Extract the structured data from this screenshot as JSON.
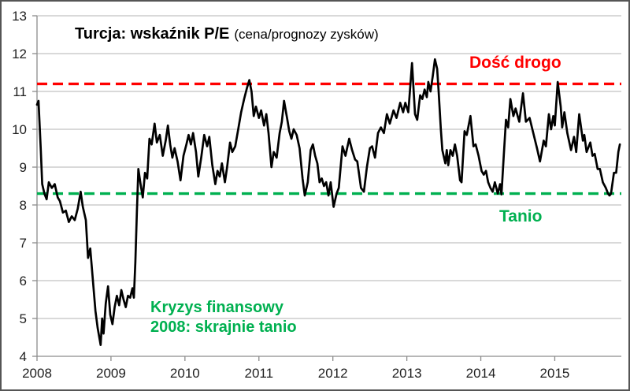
{
  "title": {
    "main": "Turcja: wskaźnik P/E",
    "sub": "(cena/prognozy zysków)"
  },
  "annotations": {
    "expensive": {
      "text": "Dość drogo",
      "color": "#ff0000"
    },
    "cheap": {
      "text": "Tanio",
      "color": "#00b050"
    },
    "crisis_line1": "Kryzys finansowy",
    "crisis_line2": "2008: skrajnie tanio",
    "crisis_color": "#00b050"
  },
  "chart_data": {
    "type": "line",
    "title": "Turcja: wskaźnik P/E (cena/prognozy zysków)",
    "xlabel": "",
    "ylabel": "",
    "xlim": [
      2008,
      2015.9
    ],
    "ylim": [
      4,
      13
    ],
    "x_ticks": [
      2008,
      2009,
      2010,
      2011,
      2012,
      2013,
      2014,
      2015
    ],
    "y_ticks": [
      4,
      5,
      6,
      7,
      8,
      9,
      10,
      11,
      12,
      13
    ],
    "grid": "horizontal",
    "legend": "none",
    "reference_lines": [
      {
        "label": "Dość drogo",
        "value": 11.2,
        "color": "#ff0000",
        "style": "dashed"
      },
      {
        "label": "Tanio",
        "value": 8.3,
        "color": "#00b050",
        "style": "dashed"
      }
    ],
    "series": [
      {
        "name": "Turcja wskaźnik P/E (cena/prognozy zysków)",
        "color": "#000000",
        "points": [
          [
            2008.0,
            10.65
          ],
          [
            2008.02,
            10.75
          ],
          [
            2008.05,
            9.5
          ],
          [
            2008.07,
            8.55
          ],
          [
            2008.1,
            8.3
          ],
          [
            2008.13,
            8.15
          ],
          [
            2008.16,
            8.6
          ],
          [
            2008.2,
            8.45
          ],
          [
            2008.24,
            8.55
          ],
          [
            2008.28,
            8.2
          ],
          [
            2008.31,
            8.1
          ],
          [
            2008.35,
            7.8
          ],
          [
            2008.39,
            7.85
          ],
          [
            2008.43,
            7.55
          ],
          [
            2008.47,
            7.7
          ],
          [
            2008.51,
            7.6
          ],
          [
            2008.55,
            7.9
          ],
          [
            2008.59,
            8.35
          ],
          [
            2008.62,
            7.95
          ],
          [
            2008.66,
            7.6
          ],
          [
            2008.69,
            6.6
          ],
          [
            2008.72,
            6.85
          ],
          [
            2008.76,
            5.9
          ],
          [
            2008.79,
            5.2
          ],
          [
            2008.82,
            4.75
          ],
          [
            2008.86,
            4.3
          ],
          [
            2008.88,
            5.0
          ],
          [
            2008.9,
            4.6
          ],
          [
            2008.93,
            5.4
          ],
          [
            2008.96,
            5.85
          ],
          [
            2008.99,
            5.1
          ],
          [
            2009.02,
            4.85
          ],
          [
            2009.05,
            5.3
          ],
          [
            2009.08,
            5.6
          ],
          [
            2009.11,
            5.35
          ],
          [
            2009.14,
            5.75
          ],
          [
            2009.17,
            5.5
          ],
          [
            2009.2,
            5.3
          ],
          [
            2009.23,
            5.6
          ],
          [
            2009.26,
            5.55
          ],
          [
            2009.29,
            5.8
          ],
          [
            2009.31,
            5.55
          ],
          [
            2009.33,
            6.5
          ],
          [
            2009.35,
            7.8
          ],
          [
            2009.37,
            8.95
          ],
          [
            2009.4,
            8.55
          ],
          [
            2009.43,
            8.2
          ],
          [
            2009.46,
            8.85
          ],
          [
            2009.49,
            8.7
          ],
          [
            2009.52,
            9.75
          ],
          [
            2009.55,
            9.6
          ],
          [
            2009.59,
            10.15
          ],
          [
            2009.62,
            9.65
          ],
          [
            2009.66,
            9.85
          ],
          [
            2009.7,
            9.3
          ],
          [
            2009.74,
            9.7
          ],
          [
            2009.77,
            10.1
          ],
          [
            2009.8,
            9.6
          ],
          [
            2009.83,
            9.25
          ],
          [
            2009.86,
            9.5
          ],
          [
            2009.9,
            9.15
          ],
          [
            2009.94,
            8.65
          ],
          [
            2009.98,
            9.3
          ],
          [
            2010.02,
            9.6
          ],
          [
            2010.05,
            9.85
          ],
          [
            2010.08,
            9.6
          ],
          [
            2010.11,
            9.9
          ],
          [
            2010.15,
            9.4
          ],
          [
            2010.18,
            8.75
          ],
          [
            2010.22,
            9.25
          ],
          [
            2010.26,
            9.85
          ],
          [
            2010.3,
            9.55
          ],
          [
            2010.33,
            9.8
          ],
          [
            2010.37,
            9.05
          ],
          [
            2010.41,
            8.55
          ],
          [
            2010.44,
            8.9
          ],
          [
            2010.47,
            8.75
          ],
          [
            2010.5,
            9.1
          ],
          [
            2010.54,
            8.6
          ],
          [
            2010.57,
            9.0
          ],
          [
            2010.61,
            9.65
          ],
          [
            2010.64,
            9.4
          ],
          [
            2010.68,
            9.55
          ],
          [
            2010.72,
            10.0
          ],
          [
            2010.76,
            10.45
          ],
          [
            2010.8,
            10.8
          ],
          [
            2010.84,
            11.1
          ],
          [
            2010.87,
            11.3
          ],
          [
            2010.9,
            11.0
          ],
          [
            2010.93,
            10.35
          ],
          [
            2010.96,
            10.6
          ],
          [
            2011.0,
            10.3
          ],
          [
            2011.03,
            10.5
          ],
          [
            2011.07,
            10.1
          ],
          [
            2011.1,
            10.4
          ],
          [
            2011.13,
            9.9
          ],
          [
            2011.17,
            9.0
          ],
          [
            2011.2,
            9.4
          ],
          [
            2011.24,
            9.25
          ],
          [
            2011.28,
            9.9
          ],
          [
            2011.31,
            10.2
          ],
          [
            2011.34,
            10.75
          ],
          [
            2011.38,
            10.3
          ],
          [
            2011.41,
            9.95
          ],
          [
            2011.44,
            9.75
          ],
          [
            2011.47,
            10.0
          ],
          [
            2011.51,
            9.85
          ],
          [
            2011.55,
            9.5
          ],
          [
            2011.59,
            8.7
          ],
          [
            2011.62,
            8.25
          ],
          [
            2011.66,
            8.6
          ],
          [
            2011.7,
            9.45
          ],
          [
            2011.73,
            9.6
          ],
          [
            2011.76,
            9.3
          ],
          [
            2011.79,
            9.1
          ],
          [
            2011.82,
            8.6
          ],
          [
            2011.85,
            8.7
          ],
          [
            2011.88,
            8.5
          ],
          [
            2011.91,
            8.6
          ],
          [
            2011.94,
            8.25
          ],
          [
            2011.97,
            8.6
          ],
          [
            2012.01,
            7.95
          ],
          [
            2012.05,
            8.3
          ],
          [
            2012.08,
            8.45
          ],
          [
            2012.13,
            9.55
          ],
          [
            2012.17,
            9.3
          ],
          [
            2012.22,
            9.75
          ],
          [
            2012.26,
            9.45
          ],
          [
            2012.3,
            9.2
          ],
          [
            2012.33,
            9.15
          ],
          [
            2012.38,
            8.45
          ],
          [
            2012.42,
            8.35
          ],
          [
            2012.46,
            9.0
          ],
          [
            2012.5,
            9.5
          ],
          [
            2012.53,
            9.55
          ],
          [
            2012.57,
            9.25
          ],
          [
            2012.61,
            9.9
          ],
          [
            2012.65,
            10.05
          ],
          [
            2012.69,
            9.9
          ],
          [
            2012.73,
            10.4
          ],
          [
            2012.77,
            10.15
          ],
          [
            2012.82,
            10.5
          ],
          [
            2012.86,
            10.3
          ],
          [
            2012.91,
            10.7
          ],
          [
            2012.95,
            10.45
          ],
          [
            2012.98,
            10.7
          ],
          [
            2013.02,
            10.45
          ],
          [
            2013.07,
            11.75
          ],
          [
            2013.11,
            10.4
          ],
          [
            2013.14,
            10.25
          ],
          [
            2013.18,
            10.9
          ],
          [
            2013.21,
            10.8
          ],
          [
            2013.24,
            11.05
          ],
          [
            2013.27,
            10.85
          ],
          [
            2013.29,
            11.25
          ],
          [
            2013.32,
            11.0
          ],
          [
            2013.35,
            11.4
          ],
          [
            2013.38,
            11.85
          ],
          [
            2013.41,
            11.6
          ],
          [
            2013.43,
            11.0
          ],
          [
            2013.46,
            10.0
          ],
          [
            2013.48,
            9.45
          ],
          [
            2013.52,
            9.1
          ],
          [
            2013.54,
            9.45
          ],
          [
            2013.56,
            9.05
          ],
          [
            2013.59,
            9.45
          ],
          [
            2013.62,
            9.3
          ],
          [
            2013.65,
            9.6
          ],
          [
            2013.68,
            9.3
          ],
          [
            2013.72,
            8.65
          ],
          [
            2013.74,
            8.6
          ],
          [
            2013.78,
            9.95
          ],
          [
            2013.81,
            9.85
          ],
          [
            2013.86,
            10.35
          ],
          [
            2013.9,
            9.55
          ],
          [
            2013.93,
            9.6
          ],
          [
            2013.97,
            9.3
          ],
          [
            2014.01,
            8.9
          ],
          [
            2014.04,
            8.8
          ],
          [
            2014.07,
            8.9
          ],
          [
            2014.1,
            8.6
          ],
          [
            2014.13,
            8.45
          ],
          [
            2014.16,
            8.35
          ],
          [
            2014.19,
            8.6
          ],
          [
            2014.23,
            8.3
          ],
          [
            2014.26,
            8.55
          ],
          [
            2014.28,
            8.28
          ],
          [
            2014.31,
            9.3
          ],
          [
            2014.34,
            10.25
          ],
          [
            2014.37,
            10.05
          ],
          [
            2014.4,
            10.8
          ],
          [
            2014.44,
            10.35
          ],
          [
            2014.47,
            10.55
          ],
          [
            2014.52,
            10.2
          ],
          [
            2014.57,
            10.95
          ],
          [
            2014.61,
            10.2
          ],
          [
            2014.66,
            10.3
          ],
          [
            2014.71,
            9.9
          ],
          [
            2014.76,
            9.5
          ],
          [
            2014.8,
            9.15
          ],
          [
            2014.85,
            9.7
          ],
          [
            2014.88,
            9.55
          ],
          [
            2014.92,
            10.4
          ],
          [
            2014.95,
            10.0
          ],
          [
            2014.98,
            10.35
          ],
          [
            2015.0,
            10.1
          ],
          [
            2015.04,
            11.25
          ],
          [
            2015.08,
            10.6
          ],
          [
            2015.1,
            10.05
          ],
          [
            2015.13,
            10.45
          ],
          [
            2015.17,
            9.9
          ],
          [
            2015.22,
            9.45
          ],
          [
            2015.26,
            9.8
          ],
          [
            2015.29,
            9.4
          ],
          [
            2015.33,
            10.4
          ],
          [
            2015.38,
            9.7
          ],
          [
            2015.4,
            9.85
          ],
          [
            2015.43,
            9.4
          ],
          [
            2015.48,
            9.65
          ],
          [
            2015.51,
            9.3
          ],
          [
            2015.54,
            9.35
          ],
          [
            2015.58,
            8.95
          ],
          [
            2015.61,
            8.95
          ],
          [
            2015.65,
            8.6
          ],
          [
            2015.69,
            8.45
          ],
          [
            2015.72,
            8.3
          ],
          [
            2015.74,
            8.25
          ],
          [
            2015.76,
            8.3
          ],
          [
            2015.8,
            8.85
          ],
          [
            2015.83,
            8.85
          ],
          [
            2015.86,
            9.4
          ],
          [
            2015.88,
            9.6
          ]
        ]
      }
    ]
  }
}
